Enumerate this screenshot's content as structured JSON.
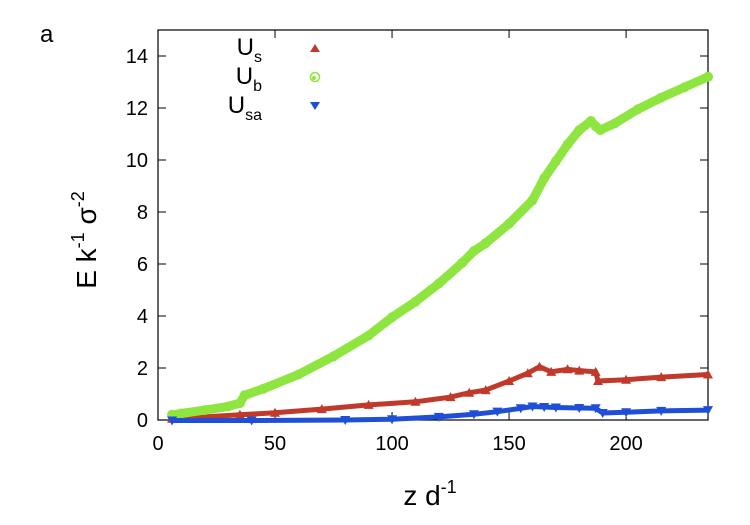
{
  "panel_label": "a",
  "chart_data": {
    "type": "scatter",
    "xlabel": {
      "base": "z d",
      "sup": "-1"
    },
    "ylabel": {
      "part1": "E k",
      "sup1": "-1",
      "part2": " σ",
      "sup2": "-2"
    },
    "xlim": [
      0,
      235
    ],
    "ylim": [
      0,
      15
    ],
    "xticks": [
      0,
      50,
      100,
      150,
      200
    ],
    "yticks": [
      0,
      2,
      4,
      6,
      8,
      10,
      12,
      14
    ],
    "grid": false,
    "legend_position": "top-left",
    "series": [
      {
        "name": "U_s",
        "label_main": "U",
        "label_sub": "s",
        "marker": "triangle-up",
        "color": "#c0392b",
        "x": [
          6,
          20,
          35,
          50,
          70,
          90,
          110,
          125,
          133,
          140,
          150,
          158,
          163,
          168,
          175,
          180,
          187,
          188,
          200,
          215,
          235
        ],
        "y": [
          0.05,
          0.12,
          0.2,
          0.28,
          0.42,
          0.58,
          0.7,
          0.88,
          1.05,
          1.15,
          1.5,
          1.8,
          2.05,
          1.85,
          1.95,
          1.9,
          1.85,
          1.5,
          1.55,
          1.65,
          1.75
        ]
      },
      {
        "name": "U_b",
        "label_main": "U",
        "label_sub": "b",
        "marker": "circle",
        "color": "#8ee53f",
        "x": [
          6,
          10,
          20,
          30,
          35,
          37,
          45,
          60,
          75,
          90,
          100,
          110,
          120,
          130,
          135,
          140,
          150,
          160,
          165,
          170,
          175,
          180,
          185,
          187,
          189,
          195,
          205,
          215,
          225,
          235
        ],
        "y": [
          0.2,
          0.25,
          0.38,
          0.52,
          0.65,
          0.95,
          1.2,
          1.75,
          2.45,
          3.25,
          3.95,
          4.55,
          5.25,
          6.05,
          6.5,
          6.8,
          7.55,
          8.45,
          9.3,
          9.95,
          10.6,
          11.15,
          11.5,
          11.3,
          11.15,
          11.4,
          11.95,
          12.4,
          12.8,
          13.2
        ]
      },
      {
        "name": "U_sa",
        "label_main": "U",
        "label_sub": "sa",
        "marker": "triangle-down",
        "color": "#1f4fd6",
        "x": [
          6,
          40,
          80,
          100,
          120,
          135,
          145,
          155,
          160,
          165,
          170,
          180,
          187,
          190,
          200,
          215,
          235
        ],
        "y": [
          -0.02,
          -0.02,
          0.0,
          0.03,
          0.12,
          0.22,
          0.32,
          0.45,
          0.52,
          0.5,
          0.48,
          0.46,
          0.45,
          0.27,
          0.3,
          0.35,
          0.38
        ]
      }
    ]
  }
}
